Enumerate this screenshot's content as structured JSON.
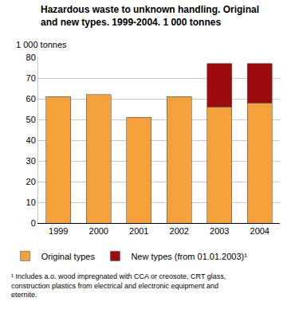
{
  "chart_data": {
    "type": "bar",
    "title": "Hazardous waste to unknown handling. Original and new types. 1999-2004. 1 000 tonnes",
    "y_label": "1 000 tonnes",
    "categories": [
      "1999",
      "2000",
      "2001",
      "2002",
      "2003",
      "2004"
    ],
    "series": [
      {
        "name": "Original types",
        "color": "#f5a13b",
        "values": [
          61,
          62,
          51,
          61,
          56,
          58
        ]
      },
      {
        "name": "New types (from 01.01.2003)¹",
        "color": "#9e0b0f",
        "values": [
          null,
          null,
          null,
          null,
          21,
          19
        ]
      }
    ],
    "stacked": true,
    "ylim": [
      0,
      80
    ],
    "yticks": [
      0,
      10,
      20,
      30,
      40,
      50,
      60,
      70,
      80
    ],
    "grid": true,
    "legend": "bottom",
    "footnote": "¹ Includes a.o. wood impregnated with CCA or creosote, CRT glass, construction plastics from electrical and electronic equipment and eternite."
  }
}
